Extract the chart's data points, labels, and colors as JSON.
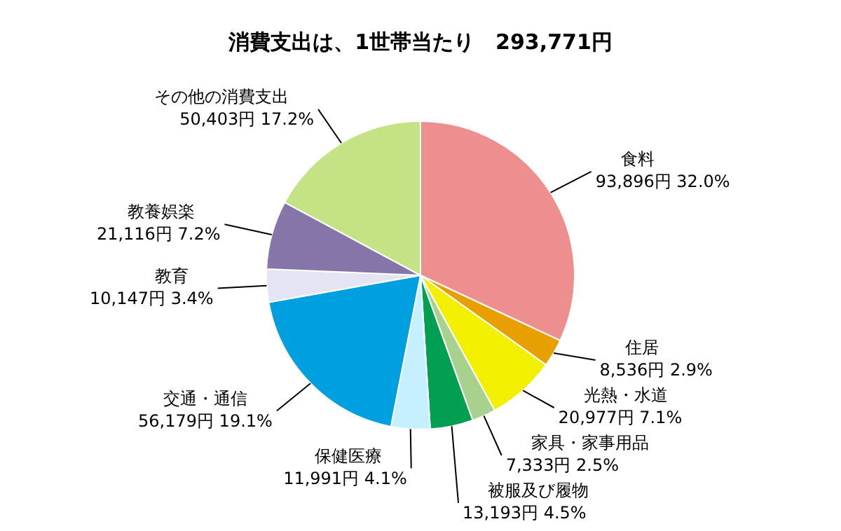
{
  "chart_data": {
    "type": "pie",
    "title": "消費支出は、1世帯当たり　293,771円",
    "legend": false,
    "categories": [
      "食料",
      "住居",
      "光熱・水道",
      "家具・家事用品",
      "被服及び履物",
      "保健医療",
      "交通・通信",
      "教育",
      "教養娯楽",
      "その他の消費支出"
    ],
    "values": [
      93896,
      8536,
      20977,
      7333,
      13193,
      11991,
      56179,
      10147,
      21116,
      50403
    ],
    "colors": [
      "#ee8f8f",
      "#e8a000",
      "#f2f000",
      "#a9d18e",
      "#00a050",
      "#c4f0ff",
      "#00a0e0",
      "#e4e4f2",
      "#8575a8",
      "#c4e384"
    ],
    "value_labels": [
      "93,896円 32.0%",
      "8,536円 2.9%",
      "20,977円 7.1%",
      "7,333円 2.5%",
      "13,193円 4.5%",
      "11,991円 4.1%",
      "56,179円 19.1%",
      "10,147円 3.4%",
      "21,116円 7.2%",
      "50,403円 17.2%"
    ]
  }
}
